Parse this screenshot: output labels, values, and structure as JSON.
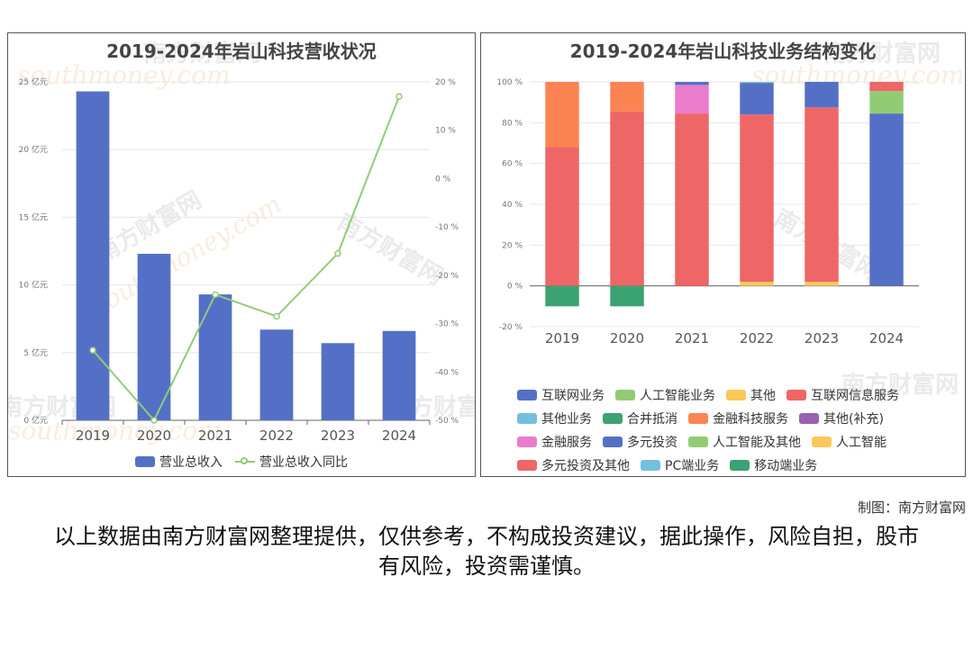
{
  "left_chart": {
    "title": "2019-2024年岩山科技营收状况",
    "legend": {
      "bar": "营业总收入",
      "line": "营业总收入同比"
    },
    "colors": {
      "bar": "#5470c6",
      "line": "#91cc75"
    }
  },
  "right_chart": {
    "title": "2019-2024年岩山科技业务结构变化",
    "legend": [
      {
        "name": "互联网业务",
        "color": "#5470c6"
      },
      {
        "name": "人工智能业务",
        "color": "#91cc75"
      },
      {
        "name": "其他",
        "color": "#fac858"
      },
      {
        "name": "互联网信息服务",
        "color": "#ee6666"
      },
      {
        "name": "其他业务",
        "color": "#73c0de"
      },
      {
        "name": "合并抵消",
        "color": "#3ba272"
      },
      {
        "name": "金融科技服务",
        "color": "#fc8452"
      },
      {
        "name": "其他(补充)",
        "color": "#9a60b4"
      },
      {
        "name": "金融服务",
        "color": "#ea7ccc"
      },
      {
        "name": "多元投资",
        "color": "#5470c6"
      },
      {
        "name": "人工智能及其他",
        "color": "#91cc75"
      },
      {
        "name": "人工智能",
        "color": "#fac858"
      },
      {
        "name": "多元投资及其他",
        "color": "#ee6666"
      },
      {
        "name": "PC端业务",
        "color": "#73c0de"
      },
      {
        "name": "移动端业务",
        "color": "#3ba272"
      }
    ]
  },
  "watermark": {
    "cn": "南方财富网",
    "en": "southmoney.com"
  },
  "credit": "制图：南方财富网",
  "disclaimer": "以上数据由南方财富网整理提供，仅供参考，不构成投资建议，据此操作，风险自担，股市有风险，投资需谨慎。",
  "chart_data": [
    {
      "type": "bar",
      "title": "2019-2024年岩山科技营收状况",
      "categories": [
        "2019",
        "2020",
        "2021",
        "2022",
        "2023",
        "2024"
      ],
      "y_left": {
        "ticks": [
          "0 亿元",
          "5 亿元",
          "10 亿元",
          "15 亿元",
          "20 亿元",
          "25 亿元"
        ],
        "ylim": [
          0,
          25
        ]
      },
      "y_right": {
        "ticks": [
          "-50 %",
          "-40 %",
          "-30 %",
          "-20 %",
          "-10 %",
          "0 %",
          "10 %",
          "20 %"
        ],
        "ylim": [
          -50,
          20
        ]
      },
      "series": [
        {
          "name": "营业总收入",
          "type": "bar",
          "axis": "left",
          "values": [
            24.3,
            12.3,
            9.3,
            6.7,
            5.7,
            6.6
          ]
        },
        {
          "name": "营业总收入同比",
          "type": "line",
          "axis": "right",
          "values": [
            -35.5,
            -50.0,
            -24.0,
            -28.5,
            -15.5,
            17.0
          ]
        }
      ],
      "legend_position": "bottom"
    },
    {
      "type": "bar",
      "stacked": true,
      "title": "2019-2024年岩山科技业务结构变化",
      "categories": [
        "2019",
        "2020",
        "2021",
        "2022",
        "2023",
        "2024"
      ],
      "y": {
        "ticks": [
          "-20 %",
          "0 %",
          "20 %",
          "40 %",
          "60 %",
          "80 %",
          "100 %"
        ],
        "ylim": [
          -20,
          100
        ]
      },
      "series": [
        {
          "name": "互联网信息服务",
          "color": "#ee6666",
          "values": [
            68,
            85.5,
            0,
            0,
            0,
            0
          ]
        },
        {
          "name": "金融科技服务",
          "color": "#fc8452",
          "values": [
            32,
            14.5,
            0,
            0,
            0,
            0
          ]
        },
        {
          "name": "合并抵消",
          "color": "#3ba272",
          "values": [
            -10,
            -10,
            0,
            0,
            0,
            0
          ]
        },
        {
          "name": "人工智能",
          "color": "#fac858",
          "values": [
            0,
            0,
            0,
            2,
            2,
            0
          ]
        },
        {
          "name": "多元投资及其他",
          "color": "#ee6666",
          "values": [
            0,
            0,
            84.5,
            82,
            85.5,
            0
          ]
        },
        {
          "name": "金融服务",
          "color": "#ea7ccc",
          "values": [
            0,
            0,
            14,
            0,
            0,
            0
          ]
        },
        {
          "name": "多元投资",
          "color": "#5470c6",
          "values": [
            0,
            0,
            1.5,
            15.5,
            12.5,
            0
          ]
        },
        {
          "name": "其他业务",
          "color": "#73c0de",
          "values": [
            0,
            0,
            0,
            0.5,
            0,
            0
          ]
        },
        {
          "name": "互联网业务",
          "color": "#5470c6",
          "values": [
            0,
            0,
            0,
            0,
            0,
            84.5
          ]
        },
        {
          "name": "人工智能业务",
          "color": "#91cc75",
          "values": [
            0,
            0,
            0,
            0,
            0,
            11
          ]
        },
        {
          "name": "互联网信息服务",
          "color": "#ee6666",
          "values": [
            0,
            0,
            0,
            0,
            0,
            4.5
          ]
        }
      ],
      "legend_position": "bottom"
    }
  ]
}
